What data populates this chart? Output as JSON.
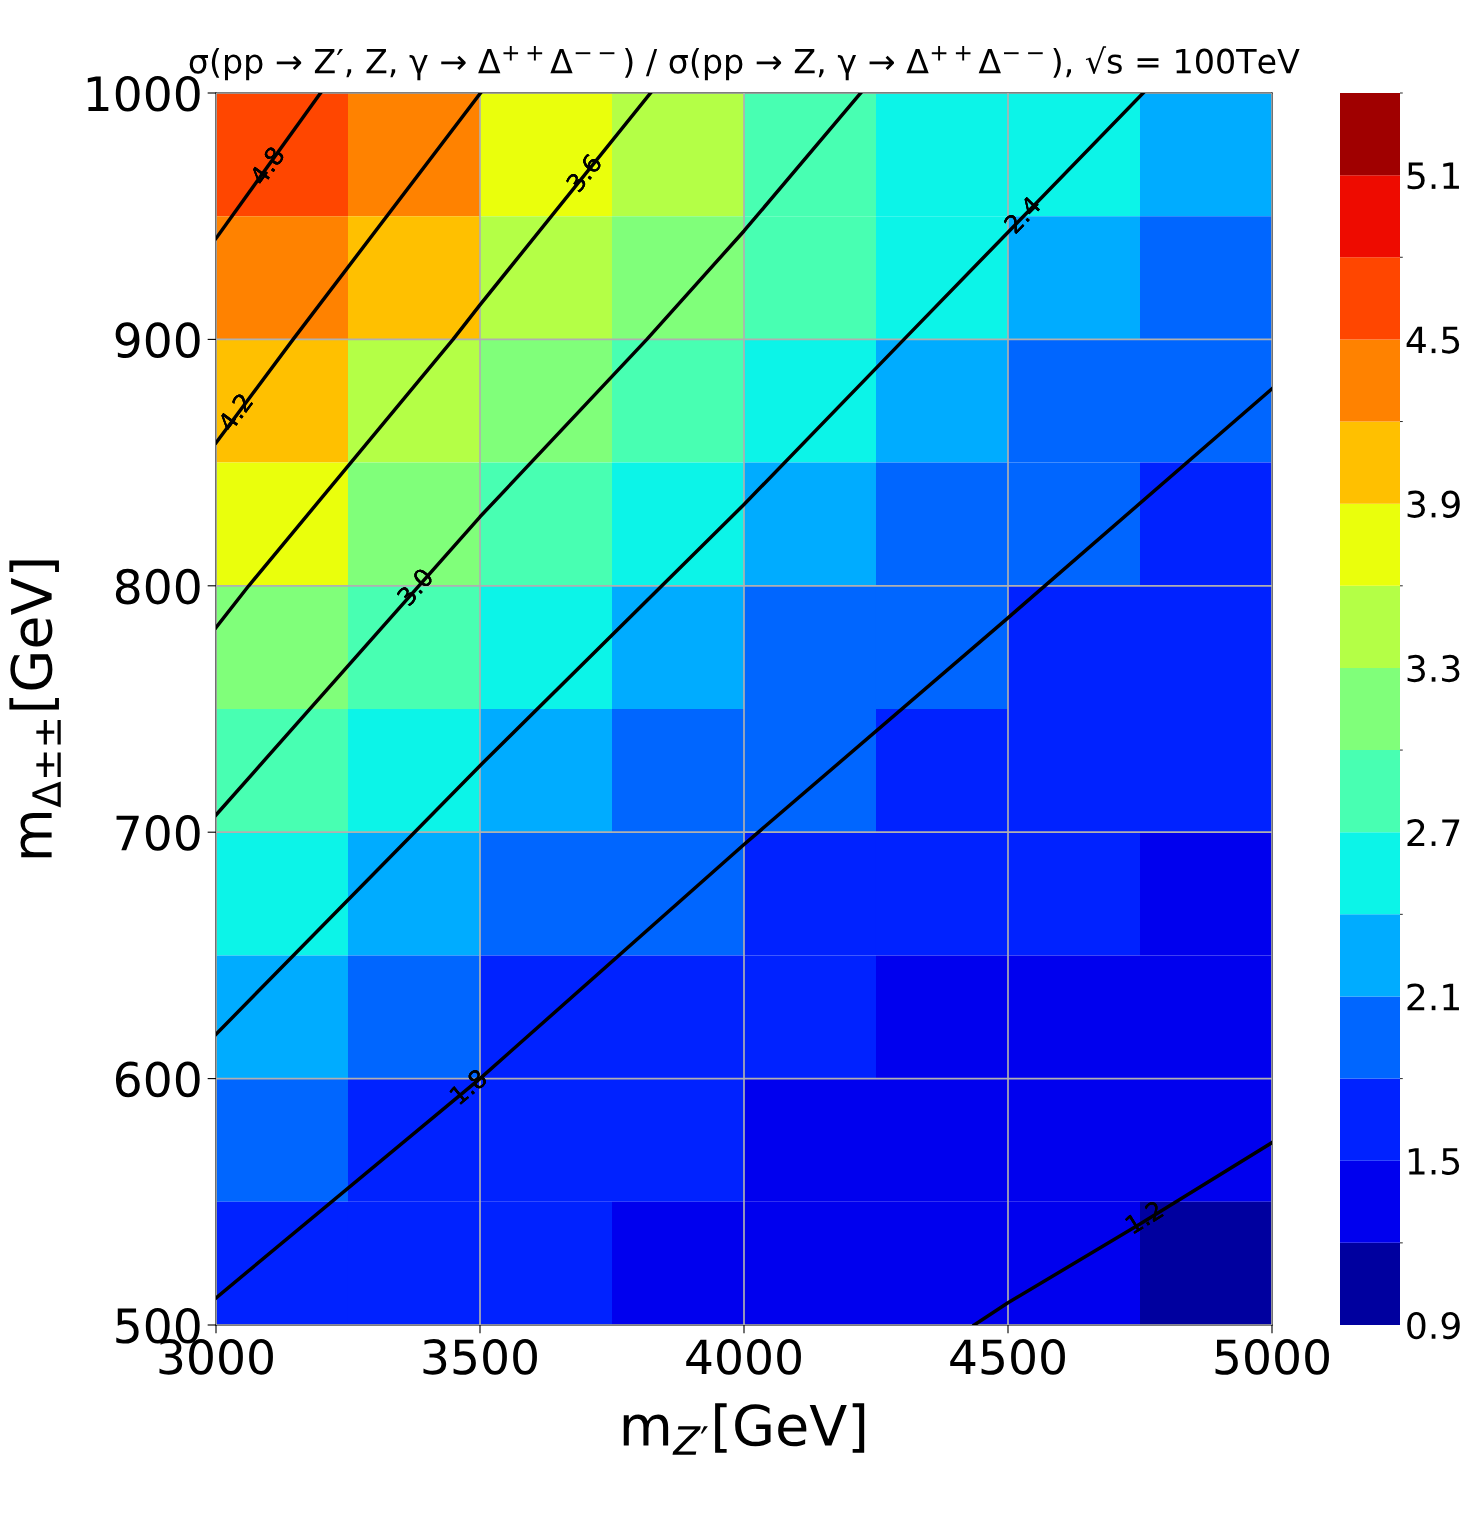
{
  "chart_data": {
    "type": "heatmap",
    "title": "σ(pp → Z′, Z, γ → Δ$^{++}$Δ$^{−−}$) / σ(pp → Z, γ → Δ$^{++}$Δ$^{−−}$), √s = 100TeV",
    "xlabel": "m$_{Z′}$[GeV]",
    "ylabel": "m$_{Δ±±}$[GeV]",
    "x": [
      3125,
      3375,
      3625,
      3875,
      4125,
      4375,
      4625,
      4875
    ],
    "y": [
      975,
      925,
      875,
      825,
      775,
      725,
      675,
      625,
      575,
      525
    ],
    "cells": [
      [
        4.78,
        4.27,
        3.79,
        3.36,
        2.99,
        2.69,
        2.42,
        2.22
      ],
      [
        4.42,
        3.91,
        3.45,
        3.05,
        2.73,
        2.44,
        2.23,
        2.04
      ],
      [
        4.06,
        3.55,
        3.12,
        2.77,
        2.46,
        2.23,
        2.04,
        1.86
      ],
      [
        3.67,
        3.2,
        2.81,
        2.49,
        2.24,
        2.04,
        1.85,
        1.74
      ],
      [
        3.29,
        2.86,
        2.52,
        2.25,
        2.03,
        1.84,
        1.72,
        1.64
      ],
      [
        2.92,
        2.56,
        2.26,
        2.03,
        1.83,
        1.71,
        1.62,
        1.54
      ],
      [
        2.59,
        2.28,
        2.03,
        1.81,
        1.7,
        1.6,
        1.52,
        1.44
      ],
      [
        2.29,
        2.03,
        1.79,
        1.68,
        1.58,
        1.49,
        1.41,
        1.34
      ],
      [
        2.02,
        1.79,
        1.67,
        1.56,
        1.47,
        1.38,
        1.31,
        1.23
      ],
      [
        1.77,
        1.65,
        1.54,
        1.44,
        1.35,
        1.27,
        1.2,
        1.13
      ]
    ],
    "clim": [
      0.9,
      5.4
    ],
    "cticks": [
      0.9,
      1.5,
      2.1,
      2.7,
      3.3,
      3.9,
      4.5,
      5.1
    ],
    "colors": [
      "#00009f",
      "#0000ee",
      "#0022ff",
      "#0066ff",
      "#00acff",
      "#0cf4e8",
      "#48ffb2",
      "#80ff7a",
      "#b4ff46",
      "#eaff0c",
      "#ffc000",
      "#ff8200",
      "#ff4600",
      "#ee0b00",
      "#a00000"
    ],
    "series": [
      {
        "type": "line",
        "color": "#000000",
        "x": [
          4436,
          4500,
          4750,
          5000
        ],
        "values": [
          500,
          509,
          541,
          574
        ]
      },
      {
        "type": "line",
        "color": "#000000",
        "x": [
          3000,
          3500,
          4000,
          4500,
          5000
        ],
        "values": [
          511,
          600,
          695,
          787,
          880
        ]
      },
      {
        "type": "line",
        "color": "#000000",
        "x": [
          3000,
          3500,
          4000,
          4303,
          4756
        ],
        "values": [
          618,
          727,
          833,
          900,
          1000
        ]
      },
      {
        "type": "line",
        "color": "#000000",
        "x": [
          3000,
          3500,
          3816,
          4000,
          4221
        ],
        "values": [
          707,
          828,
          900,
          944,
          1000
        ]
      },
      {
        "type": "line",
        "color": "#000000",
        "x": [
          3000,
          3062,
          3449,
          3500,
          3823
        ],
        "values": [
          783,
          800,
          900,
          914,
          1000
        ]
      },
      {
        "type": "line",
        "color": "#000000",
        "x": [
          3000,
          3146,
          3501
        ],
        "values": [
          858,
          900,
          1000
        ]
      },
      {
        "type": "line",
        "color": "#000000",
        "x": [
          3000,
          3198
        ],
        "values": [
          941,
          1000
        ]
      }
    ],
    "annotations": [
      {
        "text": "1.2",
        "x": 4760,
        "y": 543
      },
      {
        "text": "1.8",
        "x": 3480,
        "y": 596
      },
      {
        "text": "2.4",
        "x": 4530,
        "y": 950
      },
      {
        "text": "3.0",
        "x": 3380,
        "y": 799
      },
      {
        "text": "3.6",
        "x": 3700,
        "y": 967
      },
      {
        "text": "4.2",
        "x": 3040,
        "y": 870
      },
      {
        "text": "4.8",
        "x": 3100,
        "y": 970
      }
    ],
    "xlim": [
      3000,
      5000
    ],
    "ylim": [
      500,
      1000
    ],
    "xticks": [
      3000,
      3500,
      4000,
      4500,
      5000
    ],
    "yticks": [
      500,
      600,
      700,
      800,
      900,
      1000
    ],
    "grid": true
  }
}
